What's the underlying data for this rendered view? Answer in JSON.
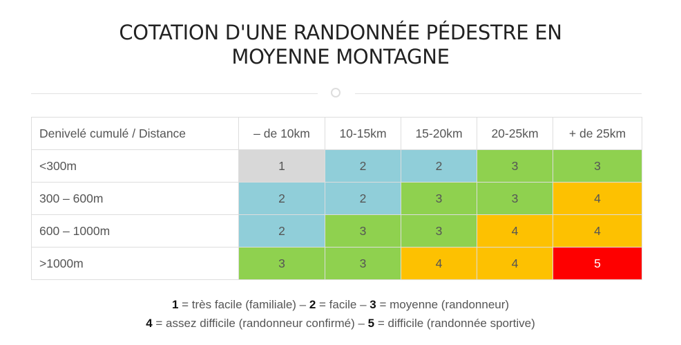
{
  "title": {
    "line1": "COTATION D'UNE RANDONNÉE PÉDESTRE EN",
    "line2": "MOYENNE MONTAGNE"
  },
  "table": {
    "corner": "Denivelé cumulé / Distance",
    "columns": [
      "– de 10km",
      "10-15km",
      "15-20km",
      "20-25km",
      "+ de 25km"
    ],
    "rows": [
      {
        "label": "<300m",
        "values": [
          "1",
          "2",
          "2",
          "3",
          "3"
        ]
      },
      {
        "label": "300 – 600m",
        "values": [
          "2",
          "2",
          "3",
          "3",
          "4"
        ]
      },
      {
        "label": "600 – 1000m",
        "values": [
          "2",
          "3",
          "3",
          "4",
          "4"
        ]
      },
      {
        "label": ">1000m",
        "values": [
          "3",
          "3",
          "4",
          "4",
          "5"
        ]
      }
    ]
  },
  "legend": {
    "line1": [
      {
        "num": "1",
        "text": " = très facile (familiale) –  "
      },
      {
        "num": "2",
        "text": " = facile – "
      },
      {
        "num": "3",
        "text": " = moyenne (randonneur)"
      }
    ],
    "line2": [
      {
        "num": "4",
        "text": " = assez difficile (randonneur confirmé) – "
      },
      {
        "num": "5",
        "text": " = difficile (randonnée sportive)"
      }
    ]
  },
  "colors": {
    "level_1": "#d8d8d8",
    "level_2": "#90ced9",
    "level_3": "#8fd14f",
    "level_4": "#fdc101",
    "level_5": "#fe0000"
  }
}
